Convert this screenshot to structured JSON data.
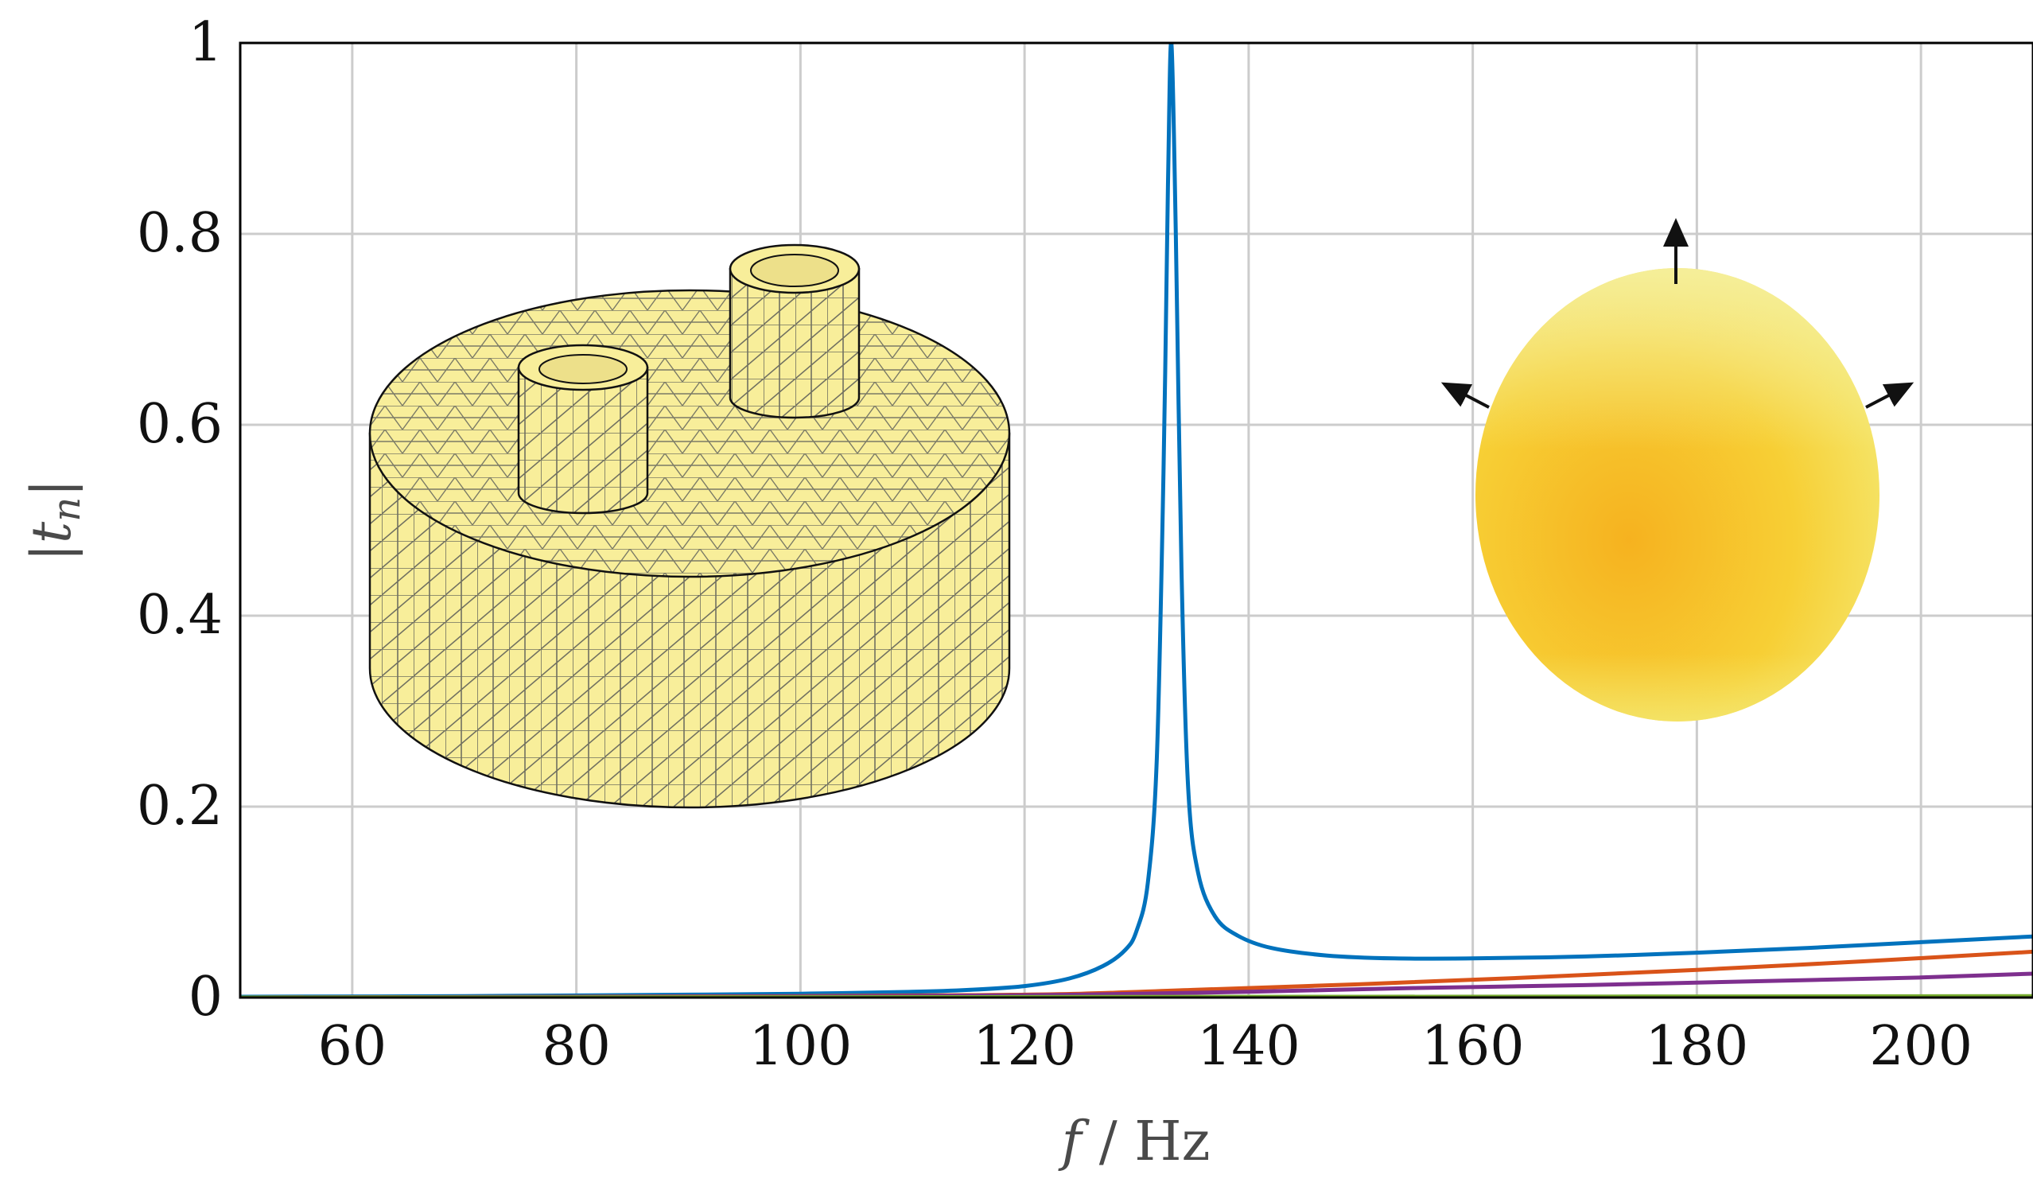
{
  "chart_data": {
    "type": "line",
    "title": "",
    "xlabel_italic": "f",
    "xlabel_unit": "/ Hz",
    "ylabel_italic": "t",
    "ylabel_sub": "n",
    "xlim": [
      50,
      210
    ],
    "ylim": [
      0,
      1
    ],
    "grid": true,
    "xticks": [
      60,
      80,
      100,
      120,
      140,
      160,
      180,
      200
    ],
    "yticks": [
      0,
      0.2,
      0.4,
      0.6,
      0.8,
      1
    ],
    "ytick_labels": [
      "0",
      "0.2",
      "0.4",
      "0.6",
      "0.8",
      "1"
    ],
    "series": [
      {
        "color": "#0072BD",
        "points": [
          [
            50,
            0.0008
          ],
          [
            70,
            0.0015
          ],
          [
            90,
            0.003
          ],
          [
            100,
            0.004
          ],
          [
            110,
            0.006
          ],
          [
            115,
            0.008
          ],
          [
            120,
            0.012
          ],
          [
            124,
            0.02
          ],
          [
            127,
            0.033
          ],
          [
            129,
            0.05
          ],
          [
            130,
            0.07
          ],
          [
            131,
            0.12
          ],
          [
            131.8,
            0.25
          ],
          [
            132.4,
            0.55
          ],
          [
            132.8,
            0.85
          ],
          [
            133.1,
            1.0
          ],
          [
            133.5,
            0.8
          ],
          [
            134,
            0.45
          ],
          [
            134.6,
            0.22
          ],
          [
            135.5,
            0.13
          ],
          [
            137,
            0.085
          ],
          [
            139,
            0.065
          ],
          [
            142,
            0.052
          ],
          [
            147,
            0.044
          ],
          [
            153,
            0.041
          ],
          [
            160,
            0.041
          ],
          [
            170,
            0.043
          ],
          [
            180,
            0.047
          ],
          [
            190,
            0.052
          ],
          [
            200,
            0.058
          ],
          [
            210,
            0.064
          ]
        ]
      },
      {
        "color": "#D95319",
        "points": [
          [
            50,
            0
          ],
          [
            80,
            0.0008
          ],
          [
            100,
            0.0015
          ],
          [
            115,
            0.0025
          ],
          [
            125,
            0.004
          ],
          [
            135,
            0.008
          ],
          [
            150,
            0.014
          ],
          [
            165,
            0.021
          ],
          [
            180,
            0.029
          ],
          [
            195,
            0.038
          ],
          [
            210,
            0.048
          ]
        ]
      },
      {
        "color": "#7E2F8E",
        "points": [
          [
            50,
            0
          ],
          [
            80,
            0.0005
          ],
          [
            100,
            0.001
          ],
          [
            115,
            0.002
          ],
          [
            125,
            0.003
          ],
          [
            140,
            0.006
          ],
          [
            155,
            0.01
          ],
          [
            170,
            0.013
          ],
          [
            185,
            0.017
          ],
          [
            200,
            0.021
          ],
          [
            210,
            0.025
          ]
        ]
      },
      {
        "color": "#77AC30",
        "points": [
          [
            50,
            0
          ],
          [
            100,
            0.0003
          ],
          [
            150,
            0.0008
          ],
          [
            210,
            0.0015
          ]
        ]
      }
    ]
  },
  "insets": {
    "mesh_model_icon": "meshed-cylinder-with-two-tubes",
    "mode_shape_icon": "yellow-ellipsoid-with-arrows",
    "mesh_color": "#F8EE9A",
    "ellipsoid_color": "#F7BF2A"
  }
}
